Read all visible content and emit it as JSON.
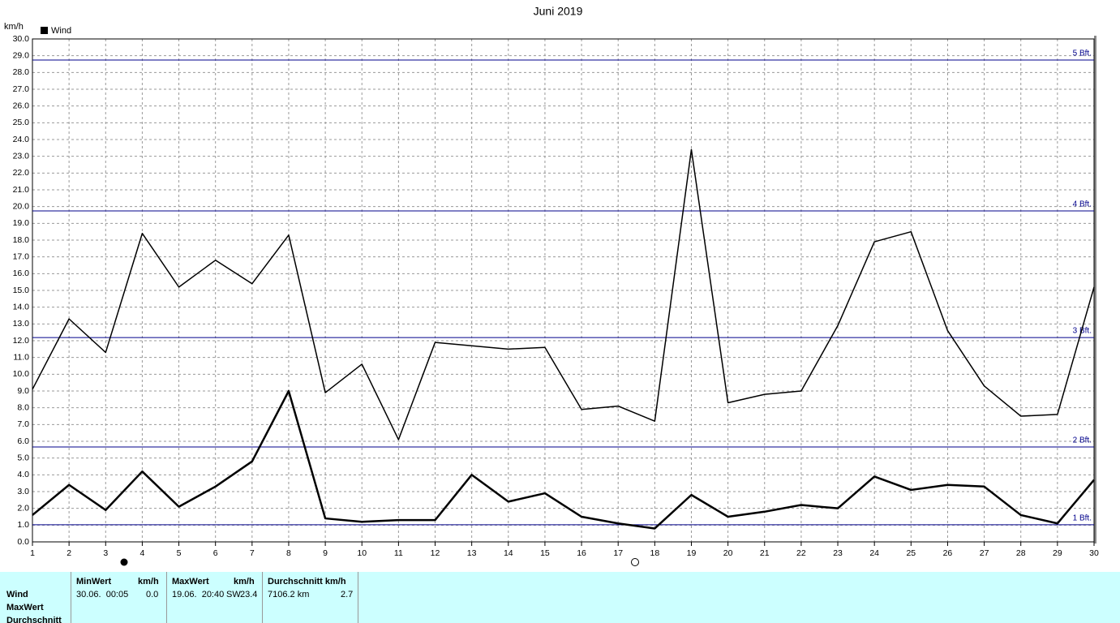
{
  "chart_data": {
    "type": "line",
    "title": "Juni 2019",
    "y_label": "km/h",
    "legend": "Wind",
    "x": [
      1,
      2,
      3,
      4,
      5,
      6,
      7,
      8,
      9,
      10,
      11,
      12,
      13,
      14,
      15,
      16,
      17,
      18,
      19,
      20,
      21,
      22,
      23,
      24,
      25,
      26,
      27,
      28,
      29,
      30
    ],
    "xlim": [
      1,
      30
    ],
    "xticks": [
      1,
      2,
      3,
      4,
      5,
      6,
      7,
      8,
      9,
      10,
      11,
      12,
      13,
      14,
      15,
      16,
      17,
      18,
      19,
      20,
      21,
      22,
      23,
      24,
      25,
      26,
      27,
      28,
      29,
      30
    ],
    "ylim": [
      0,
      30
    ],
    "yticks": [
      {
        "value": 0,
        "label": "0.0"
      },
      {
        "value": 1,
        "label": "1.0"
      },
      {
        "value": 2,
        "label": "2.0"
      },
      {
        "value": 3,
        "label": "3.0"
      },
      {
        "value": 4,
        "label": "4.0"
      },
      {
        "value": 5,
        "label": "5.0"
      },
      {
        "value": 6,
        "label": "6.0"
      },
      {
        "value": 7,
        "label": "7.0"
      },
      {
        "value": 8,
        "label": "8.0"
      },
      {
        "value": 9,
        "label": "9.0"
      },
      {
        "value": 10,
        "label": "10.0"
      },
      {
        "value": 11,
        "label": "11.0"
      },
      {
        "value": 12,
        "label": "12.0"
      },
      {
        "value": 13,
        "label": "13.0"
      },
      {
        "value": 14,
        "label": "14.0"
      },
      {
        "value": 15,
        "label": "15.0"
      },
      {
        "value": 16,
        "label": "16.0"
      },
      {
        "value": 17,
        "label": "17.0"
      },
      {
        "value": 18,
        "label": "18.0"
      },
      {
        "value": 19,
        "label": "19.0"
      },
      {
        "value": 20,
        "label": "20.0"
      },
      {
        "value": 21,
        "label": "21.0"
      },
      {
        "value": 22,
        "label": "22.0"
      },
      {
        "value": 23,
        "label": "23.0"
      },
      {
        "value": 24,
        "label": "24.0"
      },
      {
        "value": 25,
        "label": "25.0"
      },
      {
        "value": 26,
        "label": "26.0"
      },
      {
        "value": 27,
        "label": "27.0"
      },
      {
        "value": 28,
        "label": "28.0"
      },
      {
        "value": 29,
        "label": "29.0"
      },
      {
        "value": 30,
        "label": "30.0"
      }
    ],
    "grid": true,
    "reference_lines": [
      {
        "value": 1.02,
        "label": "1 Bft."
      },
      {
        "value": 5.66,
        "label": "2 Bft."
      },
      {
        "value": 12.19,
        "label": "3 Bft."
      },
      {
        "value": 19.74,
        "label": "4 Bft."
      },
      {
        "value": 28.74,
        "label": "5 Bft."
      }
    ],
    "reference_color": "#00008b",
    "series": [
      {
        "color": "#000000",
        "width": 1.5,
        "values": [
          9.1,
          13.3,
          11.3,
          18.4,
          15.2,
          16.8,
          15.4,
          18.3,
          8.9,
          10.6,
          6.1,
          11.9,
          11.7,
          11.5,
          11.6,
          7.9,
          8.1,
          7.2,
          23.4,
          8.3,
          8.8,
          9.0,
          12.9,
          17.9,
          18.5,
          12.6,
          9.3,
          7.5,
          7.6,
          15.2
        ]
      },
      {
        "color": "#000000",
        "width": 2.5,
        "values": [
          1.6,
          3.4,
          1.9,
          4.2,
          2.1,
          3.3,
          4.8,
          9.0,
          1.4,
          1.2,
          1.3,
          1.3,
          4.0,
          2.4,
          2.9,
          1.5,
          1.1,
          0.8,
          2.8,
          1.5,
          1.8,
          2.2,
          2.0,
          3.9,
          3.1,
          3.4,
          3.3,
          1.6,
          1.1,
          3.7
        ]
      }
    ]
  },
  "table": {
    "rows": [
      "Wind",
      "MaxWert",
      "Durchschnitt"
    ],
    "headers": [
      "MinWert",
      "km/h",
      "MaxWert",
      "km/h",
      "Durchschnitt km/h"
    ],
    "cells": [
      "30.06.  00:05",
      "0.0",
      "19.06.  20:40",
      "SW",
      "23.4",
      "7106.2 km",
      "2.7"
    ]
  }
}
